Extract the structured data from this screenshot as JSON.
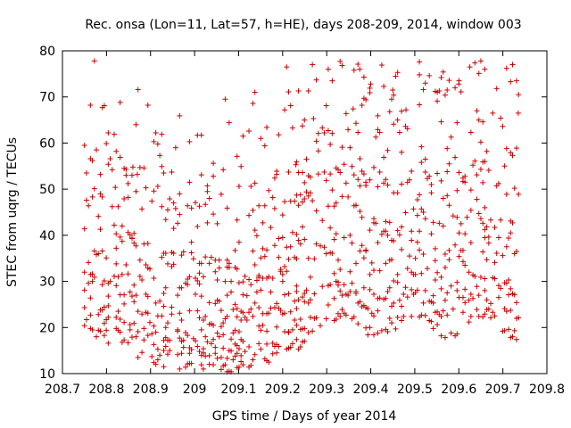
{
  "chart_data": {
    "type": "scatter",
    "title": "Rec. onsa (Lon=11, Lat=57, h=HE), days 208-209, 2014, window 003",
    "xlabel": "GPS time / Days of year 2014",
    "ylabel": "STEC from uqrg / TECUs",
    "xlim": [
      208.7,
      209.8
    ],
    "ylim": [
      10,
      80
    ],
    "xticks": [
      208.7,
      208.8,
      208.9,
      209.0,
      209.1,
      209.2,
      209.3,
      209.4,
      209.5,
      209.6,
      209.7,
      209.8
    ],
    "xtick_labels": [
      "208.7",
      "208.8",
      "208.9",
      "209",
      "209.1",
      "209.2",
      "209.3",
      "209.4",
      "209.5",
      "209.6",
      "209.7",
      "209.8"
    ],
    "yticks": [
      10,
      20,
      30,
      40,
      50,
      60,
      70,
      80
    ],
    "ytick_labels": [
      "10",
      "20",
      "30",
      "40",
      "50",
      "60",
      "70",
      "80"
    ],
    "grid": false,
    "marker": "+",
    "color": "#cc0000",
    "series": [
      {
        "name": "STEC",
        "x": [],
        "y": []
      }
    ]
  }
}
